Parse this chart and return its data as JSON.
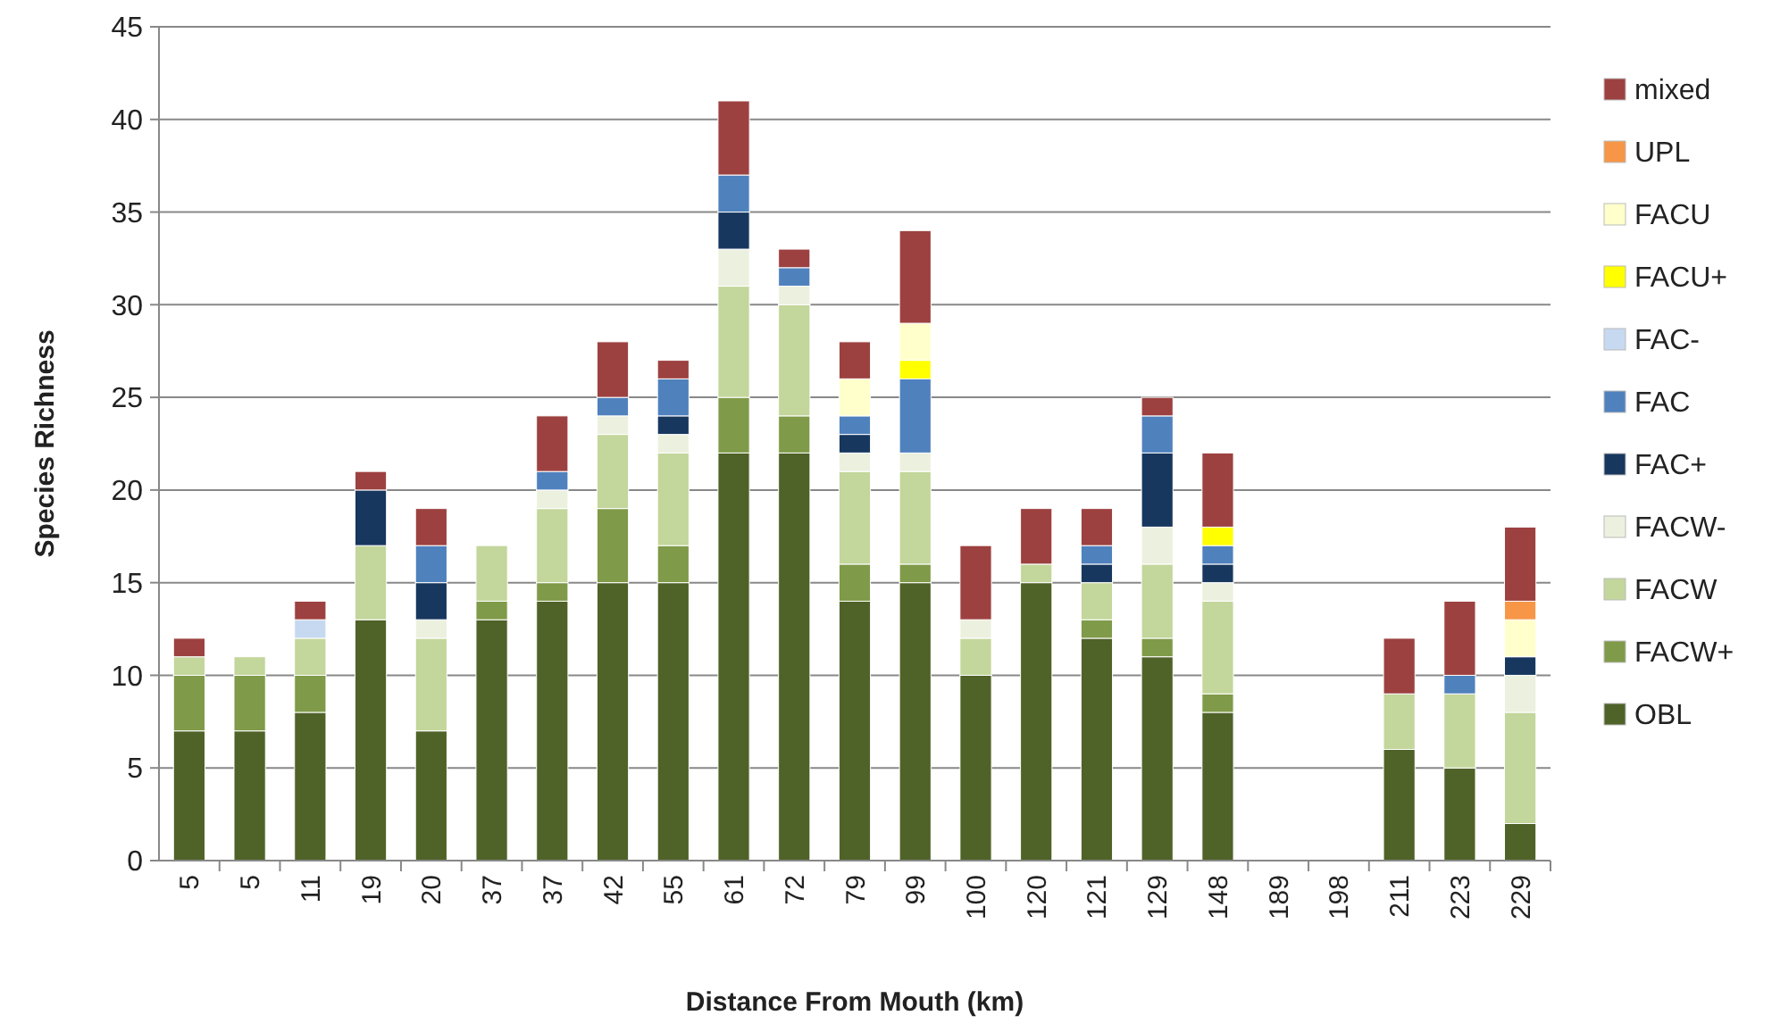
{
  "chart_data": {
    "type": "bar",
    "stacked": true,
    "xlabel": "Distance From Mouth (km)",
    "ylabel": "Species Richness",
    "categories": [
      "5",
      "5",
      "11",
      "19",
      "20",
      "37",
      "37",
      "42",
      "55",
      "61",
      "72",
      "79",
      "99",
      "100",
      "120",
      "121",
      "129",
      "148",
      "189",
      "198",
      "211",
      "223",
      "229"
    ],
    "ylim": [
      0,
      45
    ],
    "yticks": [
      0,
      5,
      10,
      15,
      20,
      25,
      30,
      35,
      40,
      45
    ],
    "grid": "y",
    "legend": "right",
    "series": [
      {
        "name": "OBL",
        "color": "#4f6228",
        "values": [
          7,
          7,
          8,
          13,
          7,
          13,
          14,
          15,
          15,
          22,
          22,
          14,
          15,
          10,
          15,
          12,
          11,
          8,
          0,
          0,
          6,
          5,
          2
        ]
      },
      {
        "name": "FACW+",
        "color": "#7f9a48",
        "values": [
          3,
          3,
          2,
          0,
          0,
          1,
          1,
          4,
          2,
          3,
          2,
          2,
          1,
          0,
          0,
          1,
          1,
          1,
          0,
          0,
          0,
          0,
          0
        ]
      },
      {
        "name": "FACW",
        "color": "#c3d69b",
        "values": [
          1,
          1,
          2,
          4,
          5,
          3,
          4,
          4,
          5,
          6,
          6,
          5,
          5,
          2,
          1,
          2,
          4,
          5,
          0,
          0,
          3,
          4,
          6
        ]
      },
      {
        "name": "FACW-",
        "color": "#ebf1de",
        "values": [
          0,
          0,
          0,
          0,
          1,
          0,
          1,
          1,
          1,
          2,
          1,
          1,
          1,
          1,
          0,
          0,
          2,
          1,
          0,
          0,
          0,
          0,
          2
        ]
      },
      {
        "name": "FAC+",
        "color": "#17375e",
        "values": [
          0,
          0,
          0,
          3,
          2,
          0,
          0,
          0,
          1,
          2,
          0,
          1,
          0,
          0,
          0,
          1,
          4,
          1,
          0,
          0,
          0,
          0,
          1
        ]
      },
      {
        "name": "FAC",
        "color": "#4f81bd",
        "values": [
          0,
          0,
          0,
          0,
          2,
          0,
          1,
          1,
          2,
          2,
          1,
          1,
          4,
          0,
          0,
          1,
          2,
          1,
          0,
          0,
          0,
          1,
          0
        ]
      },
      {
        "name": "FAC-",
        "color": "#c6d9f1",
        "values": [
          0,
          0,
          1,
          0,
          0,
          0,
          0,
          0,
          0,
          0,
          0,
          0,
          0,
          0,
          0,
          0,
          0,
          0,
          0,
          0,
          0,
          0,
          0
        ]
      },
      {
        "name": "FACU+",
        "color": "#ffff00",
        "values": [
          0,
          0,
          0,
          0,
          0,
          0,
          0,
          0,
          0,
          0,
          0,
          0,
          1,
          0,
          0,
          0,
          0,
          1,
          0,
          0,
          0,
          0,
          0
        ]
      },
      {
        "name": "FACU",
        "color": "#ffffcc",
        "values": [
          0,
          0,
          0,
          0,
          0,
          0,
          0,
          0,
          0,
          0,
          0,
          2,
          2,
          0,
          0,
          0,
          0,
          0,
          0,
          0,
          0,
          0,
          2
        ]
      },
      {
        "name": "UPL",
        "color": "#f79646",
        "values": [
          0,
          0,
          0,
          0,
          0,
          0,
          0,
          0,
          0,
          0,
          0,
          0,
          0,
          0,
          0,
          0,
          0,
          0,
          0,
          0,
          0,
          0,
          1
        ]
      },
      {
        "name": "mixed",
        "color": "#9c4140",
        "values": [
          1,
          0,
          1,
          1,
          2,
          0,
          3,
          3,
          1,
          4,
          1,
          2,
          5,
          4,
          3,
          2,
          1,
          4,
          0,
          0,
          3,
          4,
          4
        ]
      }
    ]
  }
}
